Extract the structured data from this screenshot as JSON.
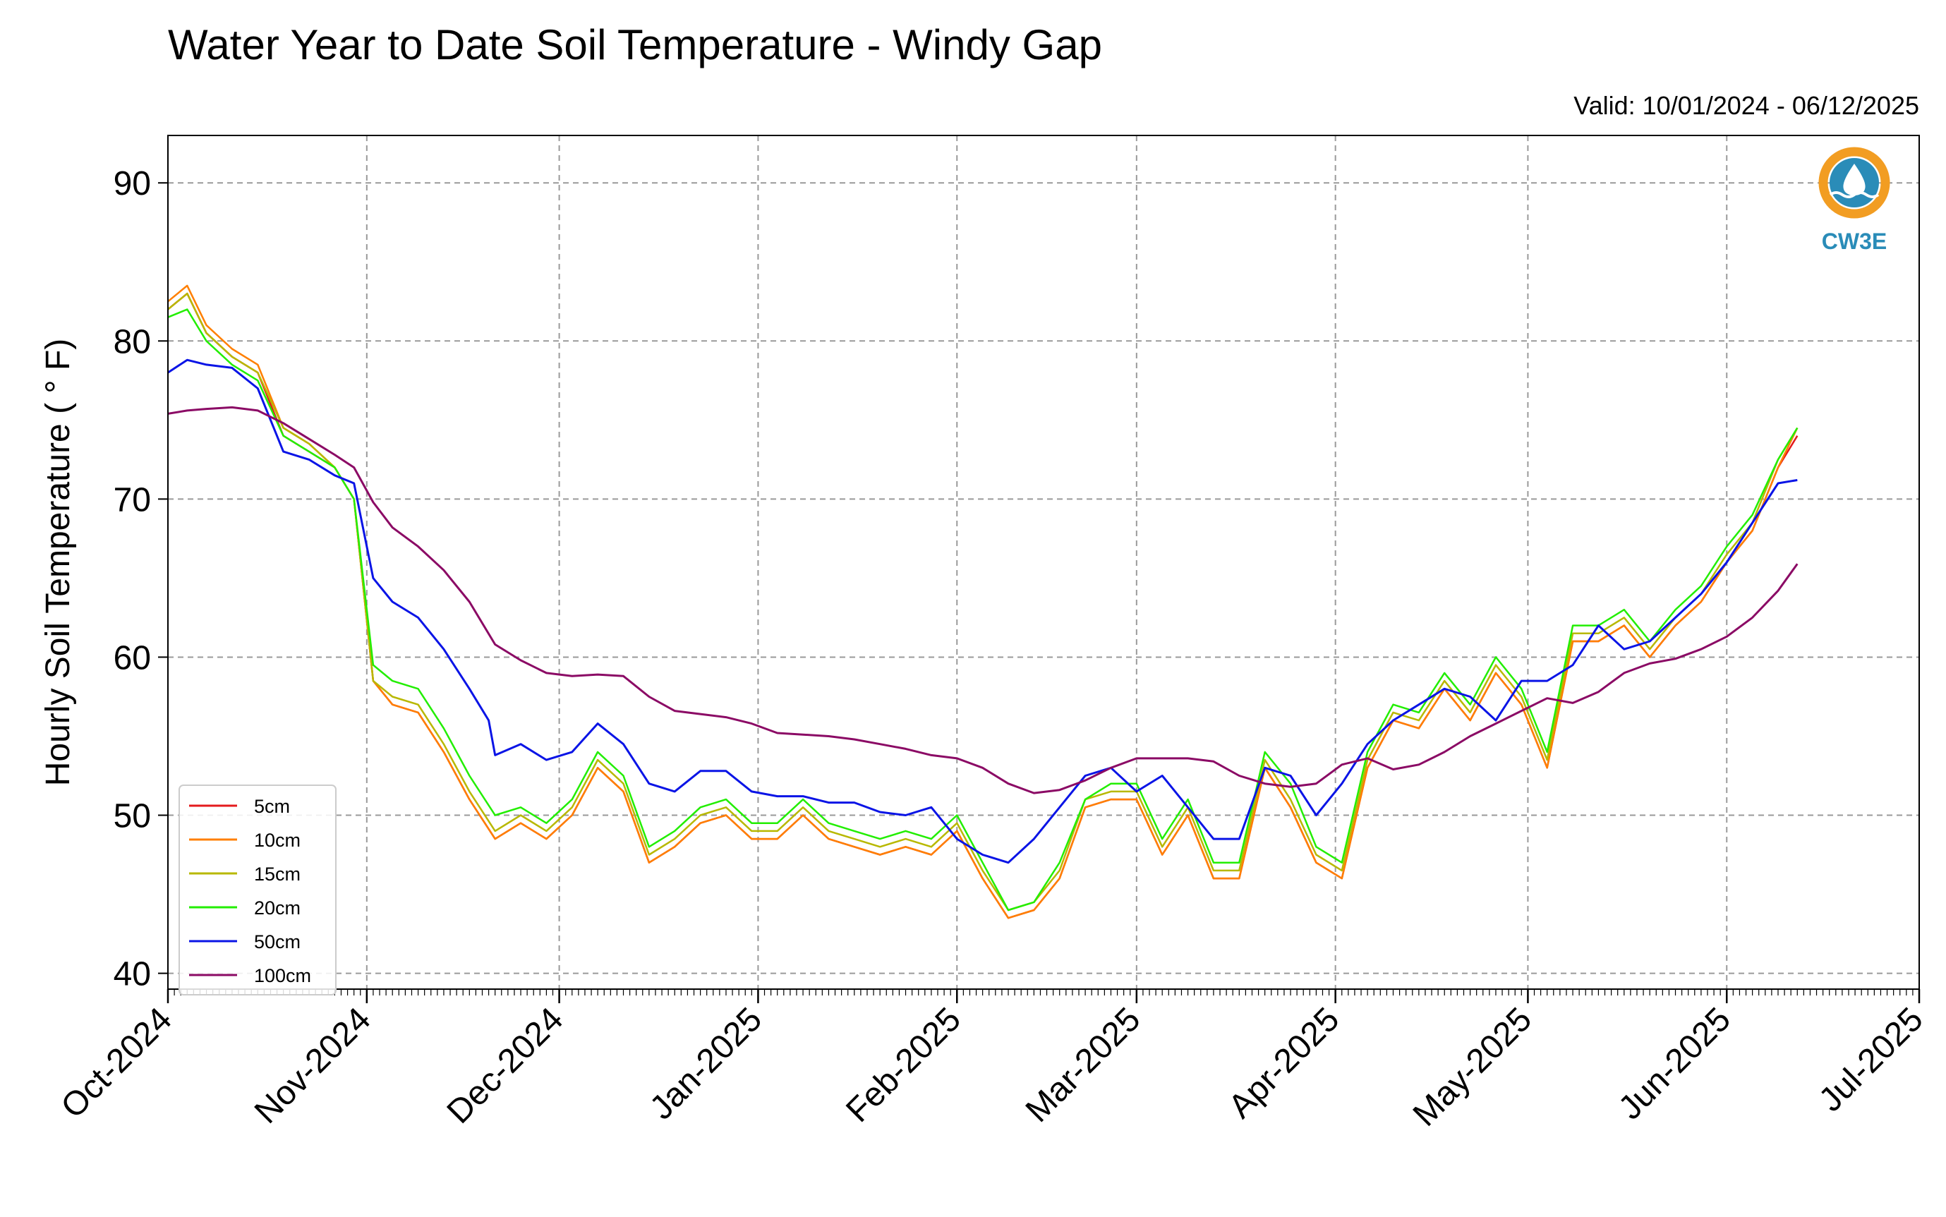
{
  "chart_data": {
    "type": "line",
    "title": "Water Year to Date Soil Temperature - Windy Gap",
    "subtitle": "Valid: 10/01/2024 - 06/12/2025",
    "xlabel": "",
    "ylabel": "Hourly Soil Temperature ( $^\\circ$F)",
    "ylabel_display": "Hourly Soil Temperature ( ° F)",
    "xlim": [
      "2024-10-01",
      "2025-07-01"
    ],
    "ylim": [
      39,
      93
    ],
    "yticks": [
      40,
      50,
      60,
      70,
      80,
      90
    ],
    "ytick_labels": [
      "40",
      "50",
      "60",
      "70",
      "80",
      "90"
    ],
    "xticks": [
      "2024-10-01",
      "2024-11-01",
      "2024-12-01",
      "2025-01-01",
      "2025-02-01",
      "2025-03-01",
      "2025-04-01",
      "2025-05-01",
      "2025-06-01",
      "2025-07-01"
    ],
    "xtick_labels": [
      "Oct-2024",
      "Nov-2024",
      "Dec-2024",
      "Jan-2025",
      "Feb-2025",
      "Mar-2025",
      "Apr-2025",
      "May-2025",
      "Jun-2025",
      "Jul-2025"
    ],
    "grid": true,
    "legend_position": "lower-left",
    "series": [
      {
        "name": "5cm",
        "color": "#e41a1c",
        "x": [
          "2024-10-01",
          "2024-10-04",
          "2024-10-07",
          "2024-10-11",
          "2024-10-15",
          "2024-10-19",
          "2024-10-23",
          "2024-10-27",
          "2024-10-30",
          "2024-11-02",
          "2024-11-05",
          "2024-11-09",
          "2024-11-13",
          "2024-11-17",
          "2024-11-21",
          "2024-11-25",
          "2024-11-29",
          "2024-12-03",
          "2024-12-07",
          "2024-12-11",
          "2024-12-15",
          "2024-12-19",
          "2024-12-23",
          "2024-12-27",
          "2024-12-31",
          "2025-01-04",
          "2025-01-08",
          "2025-01-12",
          "2025-01-16",
          "2025-01-20",
          "2025-01-24",
          "2025-01-28",
          "2025-02-01",
          "2025-02-05",
          "2025-02-09",
          "2025-02-13",
          "2025-02-17",
          "2025-02-21",
          "2025-02-25",
          "2025-03-01",
          "2025-03-05",
          "2025-03-09",
          "2025-03-13",
          "2025-03-17",
          "2025-03-21",
          "2025-03-25",
          "2025-03-29",
          "2025-04-02",
          "2025-04-06",
          "2025-04-10",
          "2025-04-14",
          "2025-04-18",
          "2025-04-22",
          "2025-04-26",
          "2025-04-30",
          "2025-05-04",
          "2025-05-08",
          "2025-05-12",
          "2025-05-16",
          "2025-05-20",
          "2025-05-24",
          "2025-05-28",
          "2025-06-01",
          "2025-06-05",
          "2025-06-09",
          "2025-06-12"
        ],
        "y": [
          82,
          83,
          80.5,
          79,
          78,
          74,
          73,
          72,
          70,
          58.5,
          57,
          56.5,
          54,
          51,
          48.5,
          49.5,
          48.5,
          50,
          53,
          51.5,
          47,
          48,
          49.5,
          50,
          48.5,
          48.5,
          50,
          48.5,
          48,
          47.5,
          48,
          47.5,
          49,
          46,
          43.5,
          44,
          46,
          50.5,
          51,
          51,
          47.5,
          50,
          46,
          46,
          53,
          50.5,
          47,
          46,
          53,
          56,
          55.5,
          58,
          56,
          59,
          57,
          53,
          61,
          61,
          62,
          60,
          62,
          63.5,
          66,
          68,
          72,
          74
        ]
      },
      {
        "name": "10cm",
        "color": "#ff7f00",
        "x": [
          "2024-10-01",
          "2024-10-04",
          "2024-10-07",
          "2024-10-11",
          "2024-10-15",
          "2024-10-19",
          "2024-10-23",
          "2024-10-27",
          "2024-10-30",
          "2024-11-02",
          "2024-11-05",
          "2024-11-09",
          "2024-11-13",
          "2024-11-17",
          "2024-11-21",
          "2024-11-25",
          "2024-11-29",
          "2024-12-03",
          "2024-12-07",
          "2024-12-11",
          "2024-12-15",
          "2024-12-19",
          "2024-12-23",
          "2024-12-27",
          "2024-12-31",
          "2025-01-04",
          "2025-01-08",
          "2025-01-12",
          "2025-01-16",
          "2025-01-20",
          "2025-01-24",
          "2025-01-28",
          "2025-02-01",
          "2025-02-05",
          "2025-02-09",
          "2025-02-13",
          "2025-02-17",
          "2025-02-21",
          "2025-02-25",
          "2025-03-01",
          "2025-03-05",
          "2025-03-09",
          "2025-03-13",
          "2025-03-17",
          "2025-03-21",
          "2025-03-25",
          "2025-03-29",
          "2025-04-02",
          "2025-04-06",
          "2025-04-10",
          "2025-04-14",
          "2025-04-18",
          "2025-04-22",
          "2025-04-26",
          "2025-04-30",
          "2025-05-04",
          "2025-05-08",
          "2025-05-12",
          "2025-05-16",
          "2025-05-20",
          "2025-05-24",
          "2025-05-28",
          "2025-06-01",
          "2025-06-05",
          "2025-06-09",
          "2025-06-12"
        ],
        "y": [
          82.5,
          83.5,
          81,
          79.5,
          78.5,
          74.5,
          73.5,
          72,
          70,
          58.5,
          57,
          56.5,
          54,
          51,
          48.5,
          49.5,
          48.5,
          50,
          53,
          51.5,
          47,
          48,
          49.5,
          50,
          48.5,
          48.5,
          50,
          48.5,
          48,
          47.5,
          48,
          47.5,
          49,
          46,
          43.5,
          44,
          46,
          50.5,
          51,
          51,
          47.5,
          50,
          46,
          46,
          53,
          50.5,
          47,
          46,
          53,
          56,
          55.5,
          58,
          56,
          59,
          57,
          53,
          61,
          61,
          62,
          60,
          62,
          63.5,
          66,
          68,
          72,
          74.5
        ]
      },
      {
        "name": "15cm",
        "color": "#b8b800",
        "x": [
          "2024-10-01",
          "2024-10-04",
          "2024-10-07",
          "2024-10-11",
          "2024-10-15",
          "2024-10-19",
          "2024-10-23",
          "2024-10-27",
          "2024-10-30",
          "2024-11-02",
          "2024-11-05",
          "2024-11-09",
          "2024-11-13",
          "2024-11-17",
          "2024-11-21",
          "2024-11-25",
          "2024-11-29",
          "2024-12-03",
          "2024-12-07",
          "2024-12-11",
          "2024-12-15",
          "2024-12-19",
          "2024-12-23",
          "2024-12-27",
          "2024-12-31",
          "2025-01-04",
          "2025-01-08",
          "2025-01-12",
          "2025-01-16",
          "2025-01-20",
          "2025-01-24",
          "2025-01-28",
          "2025-02-01",
          "2025-02-05",
          "2025-02-09",
          "2025-02-13",
          "2025-02-17",
          "2025-02-21",
          "2025-02-25",
          "2025-03-01",
          "2025-03-05",
          "2025-03-09",
          "2025-03-13",
          "2025-03-17",
          "2025-03-21",
          "2025-03-25",
          "2025-03-29",
          "2025-04-02",
          "2025-04-06",
          "2025-04-10",
          "2025-04-14",
          "2025-04-18",
          "2025-04-22",
          "2025-04-26",
          "2025-04-30",
          "2025-05-04",
          "2025-05-08",
          "2025-05-12",
          "2025-05-16",
          "2025-05-20",
          "2025-05-24",
          "2025-05-28",
          "2025-06-01",
          "2025-06-05",
          "2025-06-09",
          "2025-06-12"
        ],
        "y": [
          82,
          83,
          80.5,
          79,
          78,
          74.5,
          73.5,
          72,
          70,
          58.5,
          57.5,
          57,
          54.5,
          51.5,
          49,
          50,
          49,
          50.5,
          53.5,
          52,
          47.5,
          48.5,
          50,
          50.5,
          49,
          49,
          50.5,
          49,
          48.5,
          48,
          48.5,
          48,
          49.5,
          46.5,
          44,
          44.5,
          46.5,
          51,
          51.5,
          51.5,
          48,
          50.5,
          46.5,
          46.5,
          53.5,
          51,
          47.5,
          46.5,
          53.5,
          56.5,
          56,
          58.5,
          56.5,
          59.5,
          57.5,
          53.5,
          61.5,
          61.5,
          62.5,
          60.5,
          62.5,
          64,
          66.5,
          68.5,
          72.5,
          74.5
        ]
      },
      {
        "name": "20cm",
        "color": "#22ee00",
        "x": [
          "2024-10-01",
          "2024-10-04",
          "2024-10-07",
          "2024-10-11",
          "2024-10-15",
          "2024-10-19",
          "2024-10-23",
          "2024-10-27",
          "2024-10-30",
          "2024-11-02",
          "2024-11-05",
          "2024-11-09",
          "2024-11-13",
          "2024-11-17",
          "2024-11-21",
          "2024-11-25",
          "2024-11-29",
          "2024-12-03",
          "2024-12-07",
          "2024-12-11",
          "2024-12-15",
          "2024-12-19",
          "2024-12-23",
          "2024-12-27",
          "2024-12-31",
          "2025-01-04",
          "2025-01-08",
          "2025-01-12",
          "2025-01-16",
          "2025-01-20",
          "2025-01-24",
          "2025-01-28",
          "2025-02-01",
          "2025-02-05",
          "2025-02-09",
          "2025-02-13",
          "2025-02-17",
          "2025-02-21",
          "2025-02-25",
          "2025-03-01",
          "2025-03-05",
          "2025-03-09",
          "2025-03-13",
          "2025-03-17",
          "2025-03-21",
          "2025-03-25",
          "2025-03-29",
          "2025-04-02",
          "2025-04-06",
          "2025-04-10",
          "2025-04-14",
          "2025-04-18",
          "2025-04-22",
          "2025-04-26",
          "2025-04-30",
          "2025-05-04",
          "2025-05-08",
          "2025-05-12",
          "2025-05-16",
          "2025-05-20",
          "2025-05-24",
          "2025-05-28",
          "2025-06-01",
          "2025-06-05",
          "2025-06-09",
          "2025-06-12"
        ],
        "y": [
          81.5,
          82,
          80,
          78.5,
          77.5,
          74,
          73,
          72,
          70,
          59.5,
          58.5,
          58,
          55.5,
          52.5,
          50,
          50.5,
          49.5,
          51,
          54,
          52.5,
          48,
          49,
          50.5,
          51,
          49.5,
          49.5,
          51,
          49.5,
          49,
          48.5,
          49,
          48.5,
          50,
          47,
          44,
          44.5,
          47,
          51,
          52,
          52,
          48.5,
          51,
          47,
          47,
          54,
          52,
          48,
          47,
          54,
          57,
          56.5,
          59,
          57,
          60,
          58,
          54,
          62,
          62,
          63,
          61,
          63,
          64.5,
          67,
          69,
          72.5,
          74.5
        ]
      },
      {
        "name": "50cm",
        "color": "#0a14e6",
        "x": [
          "2024-10-01",
          "2024-10-04",
          "2024-10-07",
          "2024-10-11",
          "2024-10-15",
          "2024-10-19",
          "2024-10-23",
          "2024-10-27",
          "2024-10-30",
          "2024-11-02",
          "2024-11-05",
          "2024-11-09",
          "2024-11-13",
          "2024-11-17",
          "2024-11-20",
          "2024-11-21",
          "2024-11-25",
          "2024-11-29",
          "2024-12-03",
          "2024-12-07",
          "2024-12-11",
          "2024-12-15",
          "2024-12-19",
          "2024-12-23",
          "2024-12-27",
          "2024-12-31",
          "2025-01-04",
          "2025-01-08",
          "2025-01-12",
          "2025-01-16",
          "2025-01-20",
          "2025-01-24",
          "2025-01-28",
          "2025-02-01",
          "2025-02-05",
          "2025-02-09",
          "2025-02-13",
          "2025-02-17",
          "2025-02-21",
          "2025-02-25",
          "2025-03-01",
          "2025-03-05",
          "2025-03-09",
          "2025-03-13",
          "2025-03-17",
          "2025-03-21",
          "2025-03-25",
          "2025-03-29",
          "2025-04-02",
          "2025-04-06",
          "2025-04-10",
          "2025-04-14",
          "2025-04-18",
          "2025-04-22",
          "2025-04-26",
          "2025-04-30",
          "2025-05-04",
          "2025-05-08",
          "2025-05-12",
          "2025-05-16",
          "2025-05-20",
          "2025-05-24",
          "2025-05-28",
          "2025-06-01",
          "2025-06-05",
          "2025-06-09",
          "2025-06-12"
        ],
        "y": [
          78,
          78.8,
          78.5,
          78.3,
          77,
          73,
          72.5,
          71.5,
          71,
          65,
          63.5,
          62.5,
          60.5,
          58,
          56,
          53.8,
          54.5,
          53.5,
          54,
          55.8,
          54.5,
          52,
          51.5,
          52.8,
          52.8,
          51.5,
          51.2,
          51.2,
          50.8,
          50.8,
          50.2,
          50,
          50.5,
          48.5,
          47.5,
          47,
          48.5,
          50.5,
          52.5,
          53,
          51.5,
          52.5,
          50.5,
          48.5,
          48.5,
          53,
          52.5,
          50,
          52,
          54.5,
          56,
          57,
          58,
          57.5,
          56,
          58.5,
          58.5,
          59.5,
          62,
          60.5,
          61,
          62.5,
          64,
          66,
          68.5,
          71,
          71.2
        ]
      },
      {
        "name": "100cm",
        "color": "#8b0a65",
        "x": [
          "2024-10-01",
          "2024-10-04",
          "2024-10-07",
          "2024-10-11",
          "2024-10-15",
          "2024-10-19",
          "2024-10-23",
          "2024-10-27",
          "2024-10-30",
          "2024-11-02",
          "2024-11-05",
          "2024-11-09",
          "2024-11-13",
          "2024-11-17",
          "2024-11-21",
          "2024-11-25",
          "2024-11-29",
          "2024-12-03",
          "2024-12-07",
          "2024-12-11",
          "2024-12-15",
          "2024-12-19",
          "2024-12-23",
          "2024-12-27",
          "2024-12-31",
          "2025-01-04",
          "2025-01-08",
          "2025-01-12",
          "2025-01-16",
          "2025-01-20",
          "2025-01-24",
          "2025-01-28",
          "2025-02-01",
          "2025-02-05",
          "2025-02-09",
          "2025-02-13",
          "2025-02-17",
          "2025-02-21",
          "2025-02-25",
          "2025-03-01",
          "2025-03-05",
          "2025-03-09",
          "2025-03-13",
          "2025-03-17",
          "2025-03-21",
          "2025-03-25",
          "2025-03-29",
          "2025-04-02",
          "2025-04-06",
          "2025-04-10",
          "2025-04-14",
          "2025-04-18",
          "2025-04-22",
          "2025-04-26",
          "2025-04-30",
          "2025-05-04",
          "2025-05-08",
          "2025-05-12",
          "2025-05-16",
          "2025-05-20",
          "2025-05-24",
          "2025-05-28",
          "2025-06-01",
          "2025-06-05",
          "2025-06-09",
          "2025-06-12"
        ],
        "y": [
          75.4,
          75.6,
          75.7,
          75.8,
          75.6,
          74.8,
          73.8,
          72.8,
          72,
          69.8,
          68.2,
          67,
          65.5,
          63.5,
          60.8,
          59.8,
          59,
          58.8,
          58.9,
          58.8,
          57.5,
          56.6,
          56.4,
          56.2,
          55.8,
          55.2,
          55.1,
          55,
          54.8,
          54.5,
          54.2,
          53.8,
          53.6,
          53,
          52,
          51.4,
          51.6,
          52.2,
          53,
          53.6,
          53.6,
          53.6,
          53.4,
          52.5,
          52,
          51.8,
          52,
          53.2,
          53.6,
          52.9,
          53.2,
          54,
          55,
          55.8,
          56.6,
          57.4,
          57.1,
          57.8,
          59,
          59.6,
          59.9,
          60.5,
          61.3,
          62.5,
          64.2,
          65.9
        ]
      }
    ]
  },
  "logo": {
    "text": "CW3E",
    "ring_color": "#f29d22",
    "wave_color": "#2a8cb8",
    "text_color": "#2a8cb8"
  }
}
